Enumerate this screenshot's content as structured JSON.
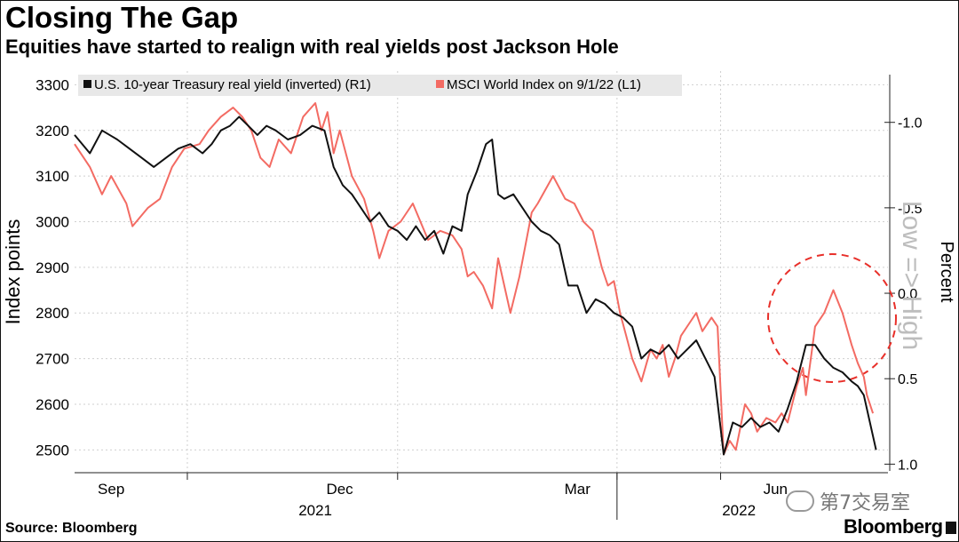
{
  "header": {
    "title": "Closing The Gap",
    "subtitle": "Equities have started to realign with real yields post Jackson Hole"
  },
  "footer": {
    "source": "Source: Bloomberg",
    "brand": "Bloomberg",
    "watermark": "第7交易室"
  },
  "colors": {
    "series_yield": "#111111",
    "series_msci": "#f36b63",
    "grid": "#cfcfcf",
    "circle": "#e8302a"
  },
  "chart_data": {
    "type": "line",
    "title": "Closing The Gap",
    "subtitle": "Equities have started to realign with real yields post Jackson Hole",
    "left_axis": {
      "label": "Index points",
      "range": [
        2450,
        3330
      ],
      "ticks": [
        2500,
        2600,
        2700,
        2800,
        2900,
        3000,
        3100,
        3200,
        3300
      ]
    },
    "right_axis": {
      "label": "Percent",
      "inverted": true,
      "range": [
        -1.3,
        1.05
      ],
      "ticks": [
        "-1.0",
        "-0.5",
        "0.0",
        "0.5",
        "1.0"
      ],
      "tick_values": [
        -1.0,
        -0.5,
        0.0,
        0.5,
        1.0
      ],
      "annotation": "Low => High"
    },
    "x_axis": {
      "month_labels": [
        "Sep",
        "Dec",
        "Mar",
        "Jun"
      ],
      "year_labels": [
        "2021",
        "2022"
      ],
      "t_range": [
        0,
        12.45
      ]
    },
    "grid": true,
    "legend_position": "top-left",
    "highlight": "dashed circle around the late-period divergence",
    "series": [
      {
        "name": "MSCI World Index on 9/1/22 (L1)",
        "legend": "MSCI World Index  on 9/1/22 (L1)",
        "axis": "left",
        "points": [
          [
            0,
            3170
          ],
          [
            0.25,
            3120
          ],
          [
            0.45,
            3060
          ],
          [
            0.6,
            3100
          ],
          [
            0.85,
            3040
          ],
          [
            0.95,
            2990
          ],
          [
            1.2,
            3030
          ],
          [
            1.4,
            3050
          ],
          [
            1.6,
            3120
          ],
          [
            1.8,
            3160
          ],
          [
            2.05,
            3170
          ],
          [
            2.2,
            3200
          ],
          [
            2.4,
            3230
          ],
          [
            2.6,
            3250
          ],
          [
            2.75,
            3230
          ],
          [
            2.9,
            3200
          ],
          [
            3.05,
            3140
          ],
          [
            3.2,
            3120
          ],
          [
            3.35,
            3180
          ],
          [
            3.55,
            3150
          ],
          [
            3.75,
            3230
          ],
          [
            3.95,
            3260
          ],
          [
            4.05,
            3200
          ],
          [
            4.15,
            3240
          ],
          [
            4.25,
            3150
          ],
          [
            4.35,
            3200
          ],
          [
            4.55,
            3100
          ],
          [
            4.75,
            3050
          ],
          [
            4.9,
            2980
          ],
          [
            5.0,
            2920
          ],
          [
            5.15,
            2980
          ],
          [
            5.35,
            3000
          ],
          [
            5.55,
            3040
          ],
          [
            5.8,
            2960
          ],
          [
            6.0,
            2980
          ],
          [
            6.2,
            2970
          ],
          [
            6.35,
            2940
          ],
          [
            6.45,
            2880
          ],
          [
            6.55,
            2890
          ],
          [
            6.7,
            2860
          ],
          [
            6.85,
            2810
          ],
          [
            6.95,
            2920
          ],
          [
            7.05,
            2860
          ],
          [
            7.15,
            2800
          ],
          [
            7.3,
            2880
          ],
          [
            7.5,
            3020
          ],
          [
            7.6,
            3040
          ],
          [
            7.85,
            3100
          ],
          [
            8.05,
            3050
          ],
          [
            8.2,
            3040
          ],
          [
            8.35,
            3000
          ],
          [
            8.5,
            2980
          ],
          [
            8.65,
            2900
          ],
          [
            8.75,
            2860
          ],
          [
            8.85,
            2870
          ],
          [
            8.95,
            2800
          ],
          [
            9.05,
            2750
          ],
          [
            9.15,
            2700
          ],
          [
            9.3,
            2650
          ],
          [
            9.45,
            2720
          ],
          [
            9.55,
            2700
          ],
          [
            9.65,
            2730
          ],
          [
            9.75,
            2660
          ],
          [
            9.85,
            2700
          ],
          [
            9.95,
            2750
          ],
          [
            10.1,
            2780
          ],
          [
            10.2,
            2800
          ],
          [
            10.3,
            2760
          ],
          [
            10.45,
            2790
          ],
          [
            10.55,
            2770
          ],
          [
            10.65,
            2490
          ],
          [
            10.75,
            2520
          ],
          [
            10.85,
            2500
          ],
          [
            11.0,
            2600
          ],
          [
            11.1,
            2580
          ],
          [
            11.2,
            2540
          ],
          [
            11.35,
            2570
          ],
          [
            11.5,
            2560
          ],
          [
            11.6,
            2580
          ],
          [
            11.7,
            2560
          ],
          [
            11.85,
            2640
          ],
          [
            11.95,
            2680
          ],
          [
            12.0,
            2620
          ],
          [
            12.1,
            2720
          ],
          [
            12.15,
            2770
          ],
          [
            12.3,
            2800
          ],
          [
            12.45,
            2850
          ],
          [
            12.6,
            2800
          ],
          [
            12.75,
            2730
          ],
          [
            12.85,
            2690
          ],
          [
            12.95,
            2660
          ],
          [
            13.0,
            2620
          ],
          [
            13.1,
            2580
          ]
        ]
      },
      {
        "name": "U.S. 10-year Treasury real yield (inverted) (R1)",
        "legend": "U.S. 10-year Treasury real yield (inverted) (R1)",
        "axis": "left",
        "points": [
          [
            0,
            3190
          ],
          [
            0.25,
            3150
          ],
          [
            0.45,
            3200
          ],
          [
            0.7,
            3180
          ],
          [
            0.9,
            3160
          ],
          [
            1.1,
            3140
          ],
          [
            1.3,
            3120
          ],
          [
            1.5,
            3140
          ],
          [
            1.7,
            3160
          ],
          [
            1.9,
            3170
          ],
          [
            2.1,
            3150
          ],
          [
            2.25,
            3170
          ],
          [
            2.4,
            3200
          ],
          [
            2.55,
            3210
          ],
          [
            2.7,
            3230
          ],
          [
            2.85,
            3210
          ],
          [
            3.0,
            3190
          ],
          [
            3.15,
            3210
          ],
          [
            3.3,
            3200
          ],
          [
            3.5,
            3180
          ],
          [
            3.7,
            3190
          ],
          [
            3.9,
            3210
          ],
          [
            4.1,
            3200
          ],
          [
            4.25,
            3120
          ],
          [
            4.4,
            3080
          ],
          [
            4.55,
            3060
          ],
          [
            4.7,
            3030
          ],
          [
            4.85,
            3000
          ],
          [
            5.0,
            3020
          ],
          [
            5.15,
            2990
          ],
          [
            5.3,
            2980
          ],
          [
            5.45,
            2960
          ],
          [
            5.6,
            2990
          ],
          [
            5.75,
            2960
          ],
          [
            5.9,
            2980
          ],
          [
            6.05,
            2930
          ],
          [
            6.2,
            2990
          ],
          [
            6.35,
            2980
          ],
          [
            6.45,
            3060
          ],
          [
            6.6,
            3110
          ],
          [
            6.75,
            3170
          ],
          [
            6.85,
            3180
          ],
          [
            6.95,
            3060
          ],
          [
            7.05,
            3050
          ],
          [
            7.2,
            3060
          ],
          [
            7.35,
            3030
          ],
          [
            7.5,
            3000
          ],
          [
            7.65,
            2980
          ],
          [
            7.8,
            2970
          ],
          [
            7.95,
            2950
          ],
          [
            8.1,
            2860
          ],
          [
            8.25,
            2860
          ],
          [
            8.4,
            2800
          ],
          [
            8.55,
            2830
          ],
          [
            8.7,
            2820
          ],
          [
            8.85,
            2800
          ],
          [
            9.0,
            2790
          ],
          [
            9.15,
            2770
          ],
          [
            9.3,
            2700
          ],
          [
            9.45,
            2720
          ],
          [
            9.6,
            2710
          ],
          [
            9.75,
            2730
          ],
          [
            9.9,
            2700
          ],
          [
            10.05,
            2720
          ],
          [
            10.2,
            2740
          ],
          [
            10.35,
            2700
          ],
          [
            10.5,
            2660
          ],
          [
            10.65,
            2490
          ],
          [
            10.8,
            2560
          ],
          [
            10.95,
            2550
          ],
          [
            11.1,
            2570
          ],
          [
            11.25,
            2550
          ],
          [
            11.4,
            2560
          ],
          [
            11.55,
            2540
          ],
          [
            11.7,
            2590
          ],
          [
            11.85,
            2650
          ],
          [
            12.0,
            2730
          ],
          [
            12.15,
            2730
          ],
          [
            12.3,
            2700
          ],
          [
            12.45,
            2680
          ],
          [
            12.6,
            2670
          ],
          [
            12.75,
            2650
          ],
          [
            12.85,
            2640
          ],
          [
            12.95,
            2620
          ],
          [
            13.05,
            2560
          ],
          [
            13.15,
            2500
          ]
        ]
      }
    ]
  }
}
